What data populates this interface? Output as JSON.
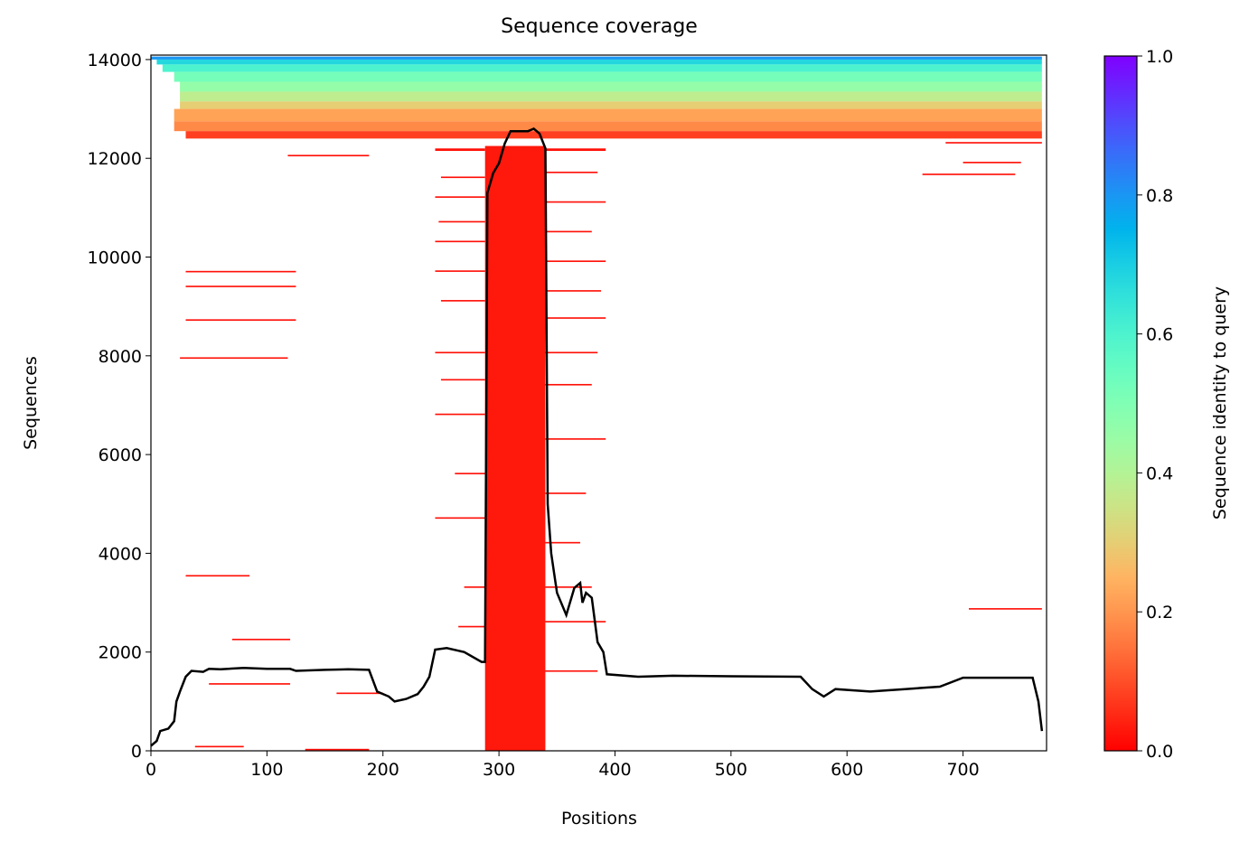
{
  "chart_data": {
    "type": "coverage",
    "title": "Sequence coverage",
    "xlabel": "Positions",
    "ylabel": "Sequences",
    "xlim": [
      0,
      772
    ],
    "xticks": [
      0,
      100,
      200,
      300,
      400,
      500,
      600,
      700
    ],
    "ylim": [
      0,
      14090
    ],
    "yticks": [
      0,
      2000,
      4000,
      6000,
      8000,
      10000,
      12000,
      14000
    ],
    "colorbar": {
      "label": "Sequence identity to query",
      "lim": [
        0,
        1
      ],
      "ticks": [
        {
          "value": 0,
          "label": "0.0"
        },
        {
          "value": 0.2,
          "label": "0.2"
        },
        {
          "value": 0.4,
          "label": "0.4"
        },
        {
          "value": 0.6,
          "label": "0.6"
        },
        {
          "value": 0.8,
          "label": "0.8"
        },
        {
          "value": 1,
          "label": "1.0"
        }
      ]
    },
    "blocks": [
      [
        0,
        768,
        14000,
        14060,
        0.8
      ],
      [
        5,
        768,
        13900,
        14000,
        0.68
      ],
      [
        10,
        768,
        13750,
        13900,
        0.6
      ],
      [
        20,
        768,
        13550,
        13750,
        0.52
      ],
      [
        25,
        768,
        13350,
        13550,
        0.46
      ],
      [
        25,
        768,
        13150,
        13350,
        0.38
      ],
      [
        25,
        768,
        13000,
        13150,
        0.3
      ],
      [
        20,
        768,
        12750,
        13000,
        0.22
      ],
      [
        20,
        768,
        12550,
        12750,
        0.18
      ],
      [
        30,
        768,
        12400,
        12550,
        0.08
      ],
      [
        288,
        340,
        0,
        12250,
        0.03
      ],
      [
        245,
        288,
        12150,
        12200,
        0.02
      ],
      [
        250,
        288,
        11600,
        11630,
        0.02
      ],
      [
        245,
        288,
        11200,
        11230,
        0.02
      ],
      [
        248,
        288,
        10700,
        10730,
        0.02
      ],
      [
        245,
        288,
        10300,
        10330,
        0.02
      ],
      [
        245,
        288,
        9700,
        9730,
        0.02
      ],
      [
        250,
        288,
        9100,
        9130,
        0.02
      ],
      [
        245,
        288,
        8050,
        8080,
        0.02
      ],
      [
        250,
        288,
        7500,
        7530,
        0.02
      ],
      [
        245,
        288,
        6800,
        6830,
        0.02
      ],
      [
        262,
        288,
        5600,
        5630,
        0.02
      ],
      [
        245,
        288,
        4700,
        4730,
        0.02
      ],
      [
        270,
        288,
        3300,
        3330,
        0.02
      ],
      [
        265,
        288,
        2500,
        2530,
        0.02
      ],
      [
        340,
        392,
        12150,
        12200,
        0.02
      ],
      [
        340,
        385,
        11700,
        11730,
        0.02
      ],
      [
        340,
        392,
        11100,
        11130,
        0.02
      ],
      [
        340,
        380,
        10500,
        10530,
        0.02
      ],
      [
        340,
        392,
        9900,
        9930,
        0.02
      ],
      [
        340,
        388,
        9300,
        9330,
        0.02
      ],
      [
        340,
        392,
        8750,
        8780,
        0.02
      ],
      [
        340,
        385,
        8050,
        8080,
        0.02
      ],
      [
        340,
        380,
        7400,
        7430,
        0.02
      ],
      [
        340,
        392,
        6300,
        6330,
        0.02
      ],
      [
        340,
        375,
        5200,
        5230,
        0.02
      ],
      [
        340,
        370,
        4200,
        4230,
        0.02
      ],
      [
        340,
        380,
        3300,
        3330,
        0.02
      ],
      [
        340,
        392,
        2600,
        2630,
        0.02
      ],
      [
        340,
        385,
        1600,
        1630,
        0.02
      ],
      [
        30,
        125,
        9690,
        9720,
        0.02
      ],
      [
        30,
        125,
        9390,
        9420,
        0.02
      ],
      [
        30,
        125,
        8710,
        8740,
        0.02
      ],
      [
        25,
        118,
        7940,
        7970,
        0.02
      ],
      [
        30,
        85,
        3530,
        3560,
        0.02
      ],
      [
        70,
        120,
        2240,
        2270,
        0.02
      ],
      [
        50,
        120,
        1340,
        1370,
        0.02
      ],
      [
        38,
        80,
        70,
        100,
        0.02
      ],
      [
        133,
        188,
        10,
        40,
        0.02
      ],
      [
        118,
        188,
        12040,
        12070,
        0.02
      ],
      [
        160,
        200,
        1150,
        1180,
        0.02
      ],
      [
        665,
        745,
        11660,
        11690,
        0.02
      ],
      [
        700,
        750,
        11900,
        11930,
        0.02
      ],
      [
        705,
        768,
        2860,
        2890,
        0.02
      ],
      [
        685,
        768,
        12300,
        12330,
        0.02
      ]
    ],
    "coverage": {
      "color": "#000000",
      "x": [
        0,
        5,
        8,
        15,
        20,
        22,
        25,
        30,
        35,
        45,
        50,
        60,
        80,
        100,
        120,
        125,
        150,
        170,
        188,
        195,
        205,
        210,
        220,
        230,
        235,
        240,
        245,
        255,
        270,
        285,
        288,
        290,
        295,
        300,
        305,
        310,
        325,
        330,
        335,
        340,
        342,
        345,
        350,
        358,
        365,
        370,
        372,
        375,
        380,
        385,
        390,
        393,
        420,
        450,
        500,
        560,
        570,
        580,
        590,
        620,
        650,
        680,
        700,
        720,
        760,
        765,
        768
      ],
      "values": [
        100,
        200,
        400,
        450,
        600,
        1000,
        1200,
        1500,
        1620,
        1600,
        1660,
        1650,
        1680,
        1660,
        1660,
        1620,
        1640,
        1650,
        1640,
        1200,
        1100,
        1000,
        1050,
        1150,
        1300,
        1500,
        2050,
        2080,
        2000,
        1800,
        1800,
        11300,
        11700,
        11900,
        12300,
        12550,
        12550,
        12600,
        12500,
        12200,
        5000,
        4000,
        3200,
        2750,
        3300,
        3400,
        3000,
        3200,
        3100,
        2200,
        2000,
        1550,
        1500,
        1520,
        1510,
        1500,
        1250,
        1100,
        1250,
        1200,
        1250,
        1300,
        1480,
        1480,
        1480,
        1000,
        400
      ]
    }
  }
}
